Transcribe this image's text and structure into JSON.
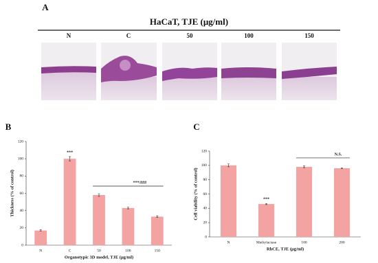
{
  "panel_labels": [
    "A",
    "B",
    "C"
  ],
  "panel_a": {
    "title": "HaCaT, TJE (μg/ml)",
    "columns": [
      "N",
      "C",
      "50",
      "100",
      "150"
    ]
  },
  "chart_data": [
    {
      "type": "bar",
      "categories": [
        "N",
        "C",
        "50",
        "100",
        "150"
      ],
      "values": [
        17,
        100,
        58,
        43,
        33
      ],
      "errors": [
        0.8,
        2.5,
        1.5,
        1,
        1
      ],
      "color": "#f4a3a3",
      "ylim": [
        0,
        120
      ],
      "yticks": [
        0,
        20,
        40,
        60,
        80,
        100,
        120
      ],
      "xlabel": "Organotypic 3D model, TJE (μg/ml)",
      "ylabel": "Thickness (% of control)",
      "annotations": [
        {
          "text": "***",
          "category": "C"
        },
        {
          "text": "***/###",
          "from": "50",
          "to": "150"
        }
      ]
    },
    {
      "type": "bar",
      "categories": [
        "N",
        "Methylactase",
        "100",
        "200"
      ],
      "values": [
        100,
        46,
        98,
        96
      ],
      "errors": [
        2,
        0.8,
        1.2,
        0.6
      ],
      "color": "#f4a3a3",
      "ylim": [
        0,
        120
      ],
      "yticks": [
        0,
        20,
        40,
        60,
        80,
        100,
        120
      ],
      "xlabel": "RhCE, TJE (μg/ml)",
      "ylabel": "Cell viability (% of control)",
      "annotations": [
        {
          "text": "***",
          "category": "Methylactase"
        },
        {
          "text": "N.S.",
          "from": "100",
          "to": "200"
        }
      ]
    }
  ]
}
